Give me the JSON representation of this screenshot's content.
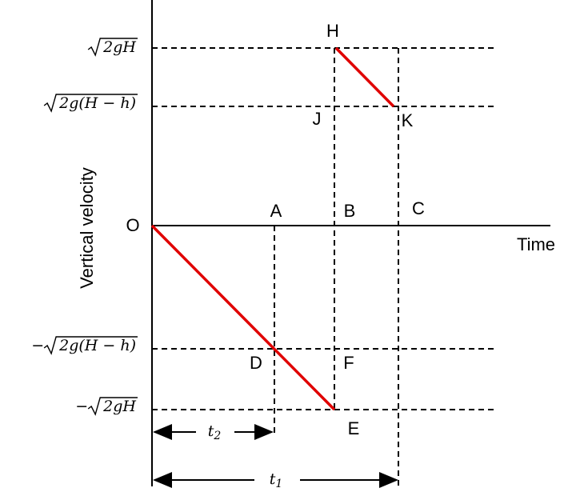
{
  "axes": {
    "y_label": "Vertical velocity",
    "x_label": "Time",
    "origin": "O"
  },
  "levels": [
    {
      "radicand": "2gH"
    },
    {
      "radicand": "2g(H − h)"
    },
    {
      "sign": "−",
      "radicand": "2g(H − h)"
    },
    {
      "sign": "−",
      "radicand": "2gH"
    }
  ],
  "points": [
    "H",
    "J",
    "K",
    "A",
    "B",
    "C",
    "D",
    "F",
    "E"
  ],
  "intervals": [
    {
      "symbol": "t",
      "subscript": "2"
    },
    {
      "symbol": "t",
      "subscript": "1"
    }
  ]
}
